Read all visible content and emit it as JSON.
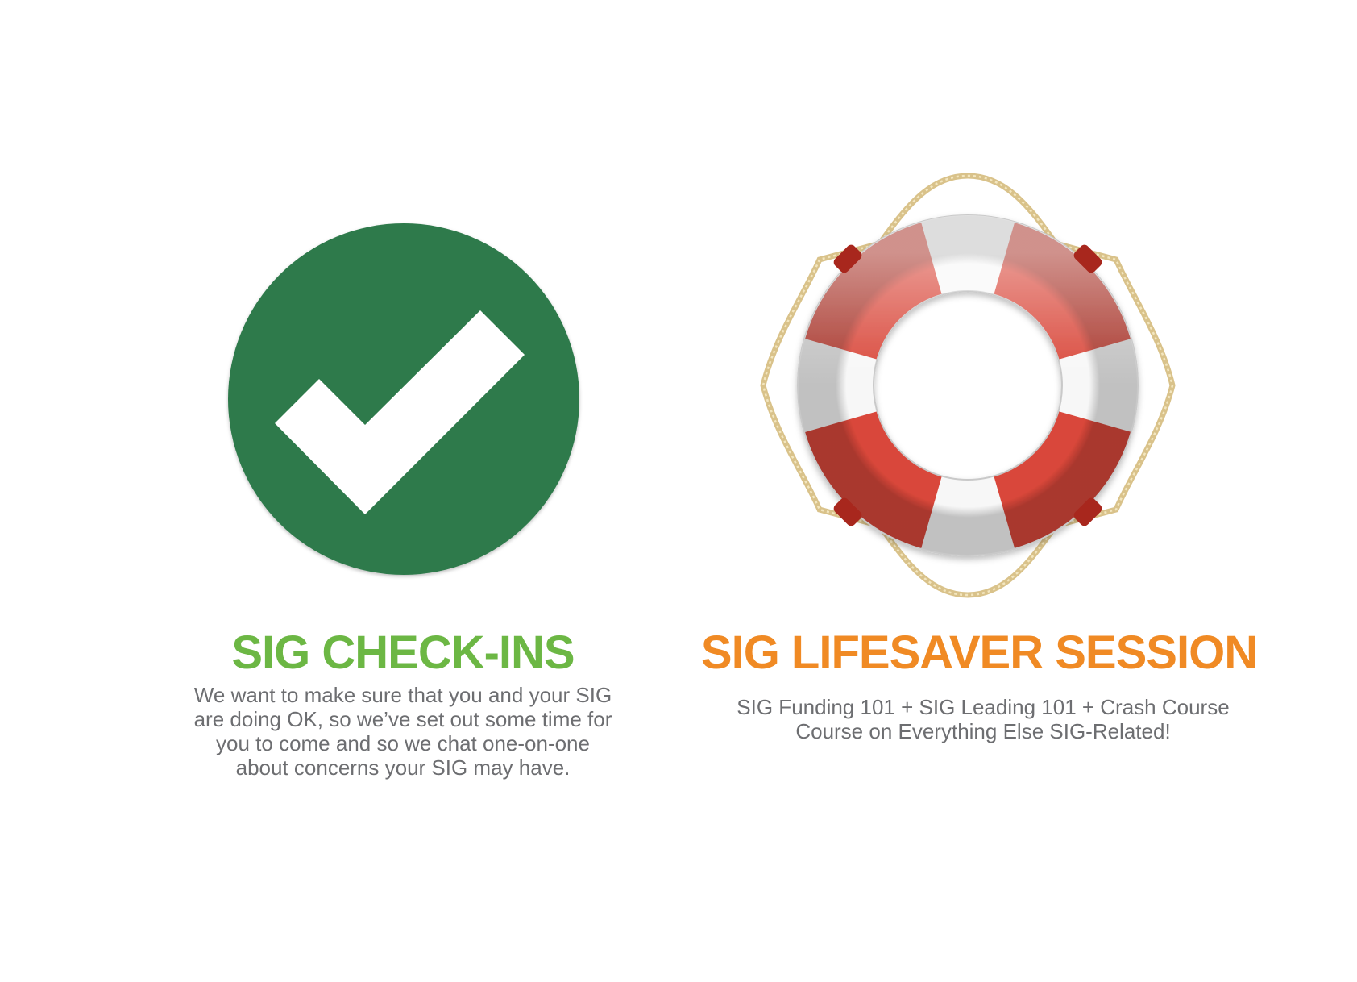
{
  "colors": {
    "check_circle": "#2e7a4b",
    "check_mark": "#ffffff",
    "check_heading": "#6cb744",
    "lifesaver_heading": "#f08a24",
    "lifesaver_red": "#d9473a",
    "lifesaver_white": "#f7f7f7",
    "rope": "#e3cf9a",
    "body_text": "#6d6e71"
  },
  "check_ins": {
    "icon": "checkmark-circle-icon",
    "heading": "SIG CHECK-INS",
    "description_lines": [
      "We want to make sure that you and your SIG",
      "are doing OK, so we’ve set out some time for",
      "you to come and so we chat one-on-one",
      "about concerns your SIG may have."
    ]
  },
  "lifesaver": {
    "icon": "lifebuoy-icon",
    "heading": "SIG LIFESAVER SESSION",
    "description_lines": [
      "SIG Funding 101 + SIG Leading 101 + Crash Course",
      "Course on Everything Else SIG-Related!"
    ]
  }
}
